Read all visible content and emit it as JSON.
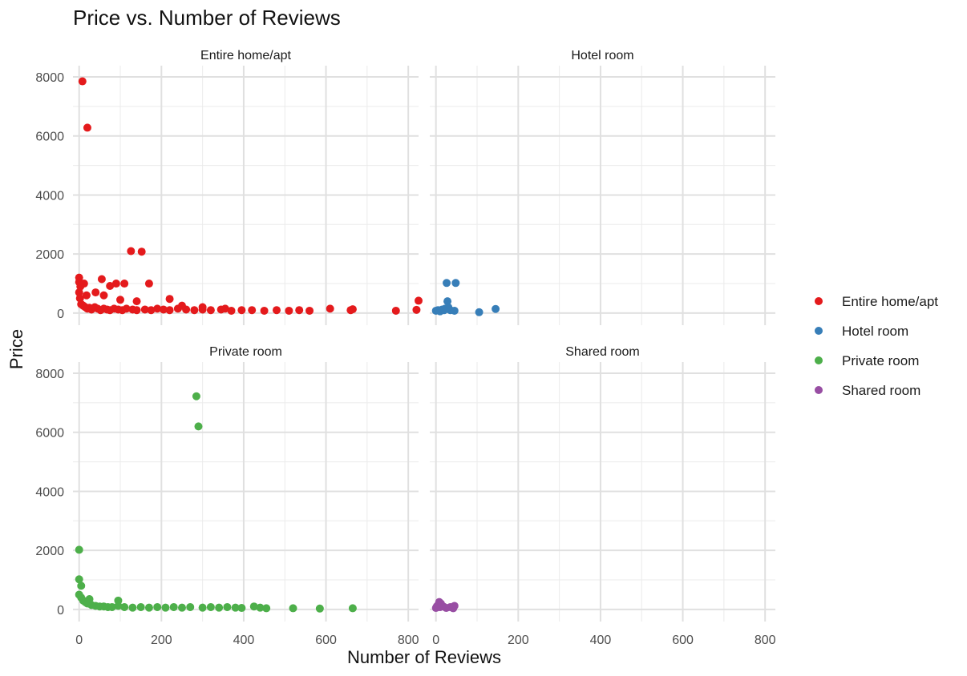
{
  "chart_data": {
    "type": "scatter",
    "title": "Price vs. Number of Reviews",
    "xlabel": "Number of Reviews",
    "ylabel": "Price",
    "xlim": [
      -15,
      825
    ],
    "ylim": [
      -410,
      8380
    ],
    "x_ticks": [
      0,
      200,
      400,
      600,
      800
    ],
    "y_ticks": [
      0,
      2000,
      4000,
      6000,
      8000
    ],
    "grid": true,
    "legend_position": "right",
    "facets": [
      "Entire home/apt",
      "Hotel room",
      "Private room",
      "Shared room"
    ],
    "series": [
      {
        "name": "Entire home/apt",
        "color": "#E41A1C",
        "facet": "Entire home/apt",
        "x": [
          8,
          20,
          126,
          152,
          0,
          0,
          0,
          2,
          5,
          10,
          15,
          20,
          25,
          30,
          38,
          45,
          52,
          60,
          68,
          75,
          85,
          95,
          105,
          115,
          130,
          140,
          160,
          175,
          190,
          205,
          220,
          240,
          260,
          280,
          300,
          320,
          345,
          370,
          395,
          420,
          450,
          480,
          510,
          535,
          560,
          610,
          660,
          665,
          770,
          820,
          825,
          55,
          75,
          90,
          110,
          170,
          220,
          12,
          40,
          60,
          100,
          140,
          250,
          300,
          355,
          3,
          18
        ],
        "y": [
          7850,
          6280,
          2100,
          2080,
          1200,
          1050,
          700,
          500,
          300,
          250,
          200,
          150,
          180,
          120,
          200,
          150,
          100,
          150,
          120,
          100,
          150,
          120,
          100,
          150,
          120,
          100,
          120,
          100,
          150,
          120,
          100,
          150,
          120,
          100,
          120,
          100,
          120,
          80,
          100,
          100,
          80,
          100,
          80,
          100,
          80,
          150,
          100,
          130,
          80,
          110,
          420,
          1150,
          920,
          1000,
          1000,
          1000,
          480,
          1000,
          700,
          600,
          450,
          400,
          250,
          200,
          150,
          900,
          600
        ]
      },
      {
        "name": "Hotel room",
        "color": "#377EB8",
        "facet": "Hotel room",
        "x": [
          0,
          5,
          10,
          15,
          22,
          28,
          35,
          45,
          26,
          30,
          48,
          105,
          145,
          20
        ],
        "y": [
          80,
          100,
          60,
          120,
          150,
          400,
          100,
          80,
          1020,
          200,
          1020,
          30,
          140,
          100
        ]
      },
      {
        "name": "Private room",
        "color": "#4DAF4A",
        "facet": "Private room",
        "x": [
          285,
          290,
          0,
          0,
          5,
          0,
          5,
          10,
          15,
          20,
          30,
          40,
          50,
          60,
          70,
          80,
          95,
          110,
          130,
          150,
          170,
          190,
          210,
          230,
          250,
          270,
          300,
          320,
          340,
          360,
          380,
          395,
          425,
          440,
          455,
          520,
          585,
          665,
          95,
          25
        ],
        "y": [
          7220,
          6200,
          2020,
          1020,
          800,
          500,
          400,
          300,
          250,
          200,
          150,
          120,
          100,
          100,
          80,
          80,
          300,
          80,
          60,
          80,
          60,
          80,
          60,
          80,
          60,
          80,
          60,
          80,
          60,
          80,
          60,
          50,
          100,
          60,
          40,
          40,
          30,
          40,
          120,
          350
        ]
      },
      {
        "name": "Shared room",
        "color": "#984EA3",
        "facet": "Shared room",
        "x": [
          0,
          2,
          5,
          8,
          12,
          18,
          25,
          35,
          42,
          45,
          10
        ],
        "y": [
          50,
          100,
          150,
          250,
          200,
          100,
          50,
          80,
          40,
          120,
          80
        ]
      }
    ]
  },
  "legend": {
    "items": [
      {
        "label": "Entire home/apt",
        "color": "#E41A1C"
      },
      {
        "label": "Hotel room",
        "color": "#377EB8"
      },
      {
        "label": "Private room",
        "color": "#4DAF4A"
      },
      {
        "label": "Shared room",
        "color": "#984EA3"
      }
    ]
  }
}
